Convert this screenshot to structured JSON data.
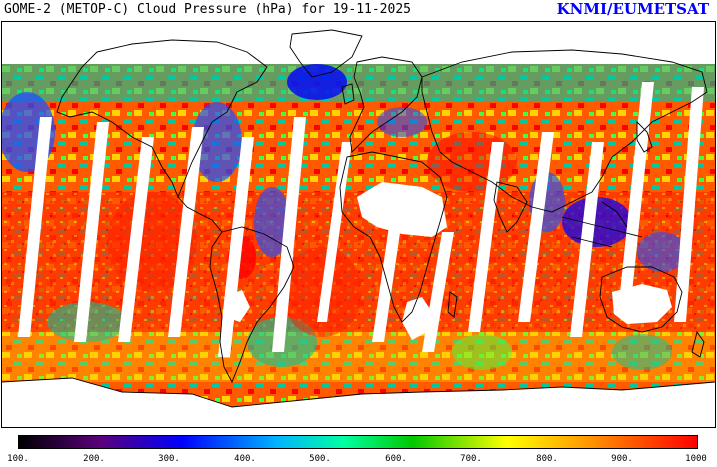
{
  "header": {
    "title": "GOME-2 (METOP-C) Cloud Pressure (hPa) for 19-11-2025",
    "brand": "KNMI/EUMETSAT"
  },
  "colorbar": {
    "tick_labels": [
      "100.",
      "200.",
      "300.",
      "400.",
      "500.",
      "600.",
      "700.",
      "800.",
      "900.",
      "1000"
    ],
    "min": 100,
    "max": 1000,
    "stops": [
      "#000000",
      "#5a007a",
      "#0000ff",
      "#00b4ff",
      "#00ffa0",
      "#00c800",
      "#ffff00",
      "#ff9600",
      "#ff0000"
    ]
  },
  "map": {
    "projection": "equirectangular",
    "colors": {
      "high_cloud": "#1e50ff",
      "mid_cloud": "#00c8a0",
      "low_cloud": "#ff2200",
      "mid_low": "#ff9600",
      "no_data": "#ffffff",
      "coastline": "#000000"
    }
  }
}
